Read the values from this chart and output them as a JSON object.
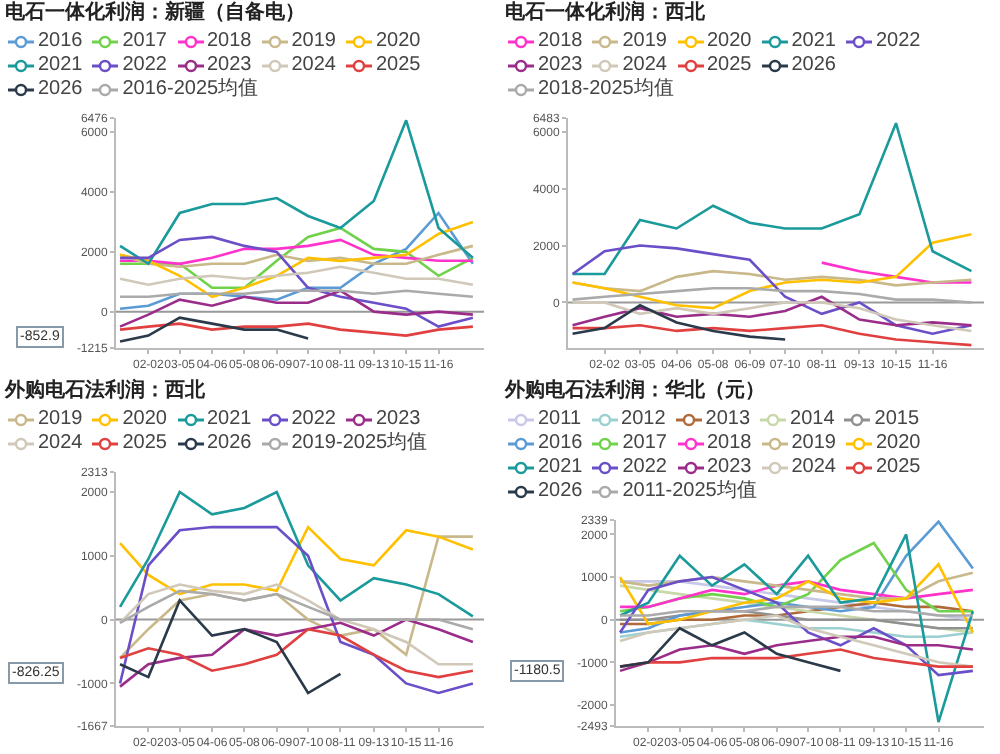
{
  "chart_data": [
    {
      "type": "line",
      "title": "电石一体化利润：新疆（自备电）",
      "legend": "top",
      "marker": "none",
      "grid": false,
      "x": [
        "--01-05",
        "--02-02",
        "--03-05",
        "--04-06",
        "--05-08",
        "--06-09",
        "--07-10",
        "--08-11",
        "--09-13",
        "--10-15",
        "--11-16",
        "--12-20"
      ],
      "xlim": [
        "--01-01",
        "--12-31"
      ],
      "xticks": [
        {
          "value": "--02-02",
          "label": "02-02"
        },
        {
          "value": "--03-05",
          "label": "03-05"
        },
        {
          "value": "--04-06",
          "label": "04-06"
        },
        {
          "value": "--05-08",
          "label": "05-08"
        },
        {
          "value": "--06-09",
          "label": "06-09"
        },
        {
          "value": "--07-10",
          "label": "07-10"
        },
        {
          "value": "--08-11",
          "label": "08-11"
        },
        {
          "value": "--09-13",
          "label": "09-13"
        },
        {
          "value": "--10-15",
          "label": "10-15"
        },
        {
          "value": "--11-16",
          "label": "11-16"
        }
      ],
      "ylim": [
        -1215,
        6476
      ],
      "yticks": [
        -1215,
        0,
        2000,
        4000,
        6000,
        6476
      ],
      "ref_lines": [
        {
          "axis": "y",
          "value": 0,
          "color": "#999999"
        }
      ],
      "annotations": [
        "-852.9"
      ],
      "series": [
        {
          "name": "2016",
          "color": "#5b9bd5",
          "values": [
            100,
            200,
            600,
            600,
            500,
            400,
            800,
            800,
            1600,
            2100,
            3300,
            1600
          ]
        },
        {
          "name": "2017",
          "color": "#70d14a",
          "values": [
            1600,
            1600,
            1600,
            800,
            800,
            1700,
            2500,
            2800,
            2100,
            2000,
            1200,
            1800
          ]
        },
        {
          "name": "2018",
          "color": "#ff33cc",
          "values": [
            1700,
            1700,
            1600,
            1800,
            2100,
            2100,
            2200,
            2400,
            1900,
            1800,
            1700,
            1700
          ]
        },
        {
          "name": "2019",
          "color": "#c8b88a",
          "values": [
            1900,
            1600,
            1500,
            1600,
            1600,
            1900,
            1700,
            1800,
            1600,
            1600,
            1900,
            2200
          ]
        },
        {
          "name": "2020",
          "color": "#ffc000",
          "values": [
            1900,
            1700,
            1200,
            500,
            800,
            1200,
            1800,
            1700,
            1800,
            1900,
            2600,
            3000
          ]
        },
        {
          "name": "2021",
          "color": "#1a9a9a",
          "values": [
            2200,
            1600,
            3300,
            3600,
            3600,
            3800,
            3200,
            2800,
            3700,
            6400,
            2800,
            1800
          ]
        },
        {
          "name": "2022",
          "color": "#6a4fc8",
          "values": [
            1800,
            1800,
            2400,
            2500,
            2200,
            2000,
            800,
            500,
            300,
            100,
            -500,
            -200
          ]
        },
        {
          "name": "2023",
          "color": "#9b2d8a",
          "values": [
            -500,
            -100,
            400,
            200,
            500,
            300,
            300,
            700,
            0,
            -100,
            0,
            -100
          ]
        },
        {
          "name": "2024",
          "color": "#d0c8b8",
          "values": [
            1100,
            900,
            1100,
            1200,
            1100,
            1200,
            1300,
            1500,
            1300,
            1100,
            1100,
            900
          ]
        },
        {
          "name": "2025",
          "color": "#e04040",
          "values": [
            -600,
            -500,
            -400,
            -600,
            -500,
            -500,
            -400,
            -600,
            -700,
            -800,
            -600,
            -500
          ]
        },
        {
          "name": "2026",
          "color": "#2b3a4a",
          "values": [
            -1000,
            -800,
            -200,
            -400,
            -600,
            -600,
            -900,
            null,
            null,
            null,
            null,
            null
          ]
        },
        {
          "name": "2016-2025均值",
          "color": "#aaaaaa",
          "values": [
            500,
            500,
            600,
            600,
            600,
            700,
            700,
            700,
            600,
            700,
            600,
            500
          ]
        }
      ]
    },
    {
      "type": "line",
      "title": "电石一体化利润：西北",
      "legend": "top",
      "marker": "none",
      "grid": false,
      "x": [
        "--01-05",
        "--02-02",
        "--03-05",
        "--04-06",
        "--05-08",
        "--06-09",
        "--07-10",
        "--08-11",
        "--09-13",
        "--10-15",
        "--11-16",
        "--12-20"
      ],
      "xlim": [
        "--01-01",
        "--12-31"
      ],
      "xticks": [
        {
          "value": "--02-02",
          "label": "02-02"
        },
        {
          "value": "--03-05",
          "label": "03-05"
        },
        {
          "value": "--04-06",
          "label": "04-06"
        },
        {
          "value": "--05-08",
          "label": "05-08"
        },
        {
          "value": "--06-09",
          "label": "06-09"
        },
        {
          "value": "--07-10",
          "label": "07-10"
        },
        {
          "value": "--08-11",
          "label": "08-11"
        },
        {
          "value": "--09-13",
          "label": "09-13"
        },
        {
          "value": "--10-15",
          "label": "10-15"
        },
        {
          "value": "--11-16",
          "label": "11-16"
        }
      ],
      "ylim": [
        -1600,
        6483
      ],
      "yticks": [
        0,
        2000,
        4000,
        6000,
        6483
      ],
      "ref_lines": [
        {
          "axis": "y",
          "value": 0,
          "color": "#999999"
        }
      ],
      "series": [
        {
          "name": "2018",
          "color": "#ff33cc",
          "values": [
            null,
            null,
            null,
            null,
            null,
            null,
            null,
            1400,
            1100,
            900,
            700,
            700
          ]
        },
        {
          "name": "2019",
          "color": "#c8b88a",
          "values": [
            700,
            500,
            400,
            900,
            1100,
            1000,
            800,
            900,
            800,
            600,
            700,
            800
          ]
        },
        {
          "name": "2020",
          "color": "#ffc000",
          "values": [
            700,
            500,
            200,
            -100,
            -200,
            400,
            700,
            800,
            700,
            900,
            2100,
            2400
          ]
        },
        {
          "name": "2021",
          "color": "#1a9a9a",
          "values": [
            1000,
            1000,
            2900,
            2600,
            3400,
            2800,
            2600,
            2600,
            3100,
            6300,
            1800,
            1100
          ]
        },
        {
          "name": "2022",
          "color": "#6a4fc8",
          "values": [
            1000,
            1800,
            2000,
            1900,
            1700,
            1500,
            200,
            -400,
            0,
            -800,
            -1100,
            -800
          ]
        },
        {
          "name": "2023",
          "color": "#9b2d8a",
          "values": [
            -800,
            -500,
            -200,
            -500,
            -400,
            -500,
            -300,
            200,
            -600,
            -800,
            -700,
            -800
          ]
        },
        {
          "name": "2024",
          "color": "#d0c8b8",
          "values": [
            0,
            0,
            -400,
            -200,
            -400,
            -200,
            0,
            0,
            -200,
            -600,
            -800,
            -1000
          ]
        },
        {
          "name": "2025",
          "color": "#e04040",
          "values": [
            -900,
            -900,
            -800,
            -1000,
            -900,
            -1000,
            -900,
            -800,
            -1100,
            -1300,
            -1400,
            -1500
          ]
        },
        {
          "name": "2026",
          "color": "#2b3a4a",
          "values": [
            -1100,
            -900,
            -100,
            -700,
            -1000,
            -1200,
            -1300,
            null,
            null,
            null,
            null,
            null
          ]
        },
        {
          "name": "2018-2025均值",
          "color": "#aaaaaa",
          "values": [
            100,
            200,
            300,
            400,
            500,
            500,
            400,
            400,
            300,
            100,
            100,
            0
          ]
        }
      ]
    },
    {
      "type": "line",
      "title": "外购电石法利润：西北",
      "legend": "top",
      "marker": "none",
      "grid": false,
      "x": [
        "--01-05",
        "--02-02",
        "--03-05",
        "--04-06",
        "--05-08",
        "--06-09",
        "--07-10",
        "--08-11",
        "--09-13",
        "--10-15",
        "--11-16",
        "--12-20"
      ],
      "xlim": [
        "--01-01",
        "--12-31"
      ],
      "xticks": [
        {
          "value": "--02-02",
          "label": "02-02"
        },
        {
          "value": "--03-05",
          "label": "03-05"
        },
        {
          "value": "--04-06",
          "label": "04-06"
        },
        {
          "value": "--05-08",
          "label": "05-08"
        },
        {
          "value": "--06-09",
          "label": "06-09"
        },
        {
          "value": "--07-10",
          "label": "07-10"
        },
        {
          "value": "--08-11",
          "label": "08-11"
        },
        {
          "value": "--09-13",
          "label": "09-13"
        },
        {
          "value": "--10-15",
          "label": "10-15"
        },
        {
          "value": "--11-16",
          "label": "11-16"
        }
      ],
      "ylim": [
        -1667,
        2313
      ],
      "yticks": [
        -1667,
        -1000,
        0,
        1000,
        2000,
        2313
      ],
      "ref_lines": [
        {
          "axis": "y",
          "value": 0,
          "color": "#999999"
        }
      ],
      "annotations": [
        "-826.25"
      ],
      "series": [
        {
          "name": "2019",
          "color": "#c8b88a",
          "values": [
            -600,
            -150,
            300,
            400,
            300,
            400,
            0,
            -250,
            -150,
            -550,
            1300,
            1300
          ]
        },
        {
          "name": "2020",
          "color": "#ffc000",
          "values": [
            1200,
            700,
            400,
            550,
            550,
            450,
            1450,
            950,
            850,
            1400,
            1300,
            1100
          ]
        },
        {
          "name": "2021",
          "color": "#1a9a9a",
          "values": [
            200,
            950,
            2000,
            1650,
            1750,
            2000,
            850,
            300,
            650,
            550,
            400,
            50
          ]
        },
        {
          "name": "2022",
          "color": "#6a4fc8",
          "values": [
            -1000,
            850,
            1400,
            1450,
            1450,
            1450,
            1000,
            -350,
            -550,
            -1000,
            -1150,
            -1000
          ]
        },
        {
          "name": "2023",
          "color": "#9b2d8a",
          "values": [
            -1050,
            -700,
            -600,
            -550,
            -150,
            -250,
            -150,
            -50,
            -250,
            0,
            -150,
            -350
          ]
        },
        {
          "name": "2024",
          "color": "#d0c8b8",
          "values": [
            -50,
            400,
            550,
            450,
            400,
            550,
            300,
            0,
            -150,
            -350,
            -700,
            -700
          ]
        },
        {
          "name": "2025",
          "color": "#e04040",
          "values": [
            -600,
            -450,
            -550,
            -800,
            -700,
            -550,
            -150,
            -250,
            -550,
            -800,
            -900,
            -800
          ]
        },
        {
          "name": "2026",
          "color": "#2b3a4a",
          "values": [
            -700,
            -900,
            300,
            -250,
            -150,
            -350,
            -1150,
            -850,
            null,
            null,
            null,
            null
          ]
        },
        {
          "name": "2019-2025均值",
          "color": "#aaaaaa",
          "values": [
            -50,
            200,
            450,
            400,
            300,
            400,
            200,
            0,
            0,
            0,
            0,
            -150
          ]
        }
      ]
    },
    {
      "type": "line",
      "title": "外购电石法利润：华北（元）",
      "legend": "top",
      "marker": "none",
      "grid": false,
      "x": [
        "--01-05",
        "--02-02",
        "--03-05",
        "--04-06",
        "--05-08",
        "--06-09",
        "--07-10",
        "--08-11",
        "--09-13",
        "--10-15",
        "--11-16",
        "--12-20"
      ],
      "xlim": [
        "--01-01",
        "--12-31"
      ],
      "xticks": [
        {
          "value": "--02-02",
          "label": "02-02"
        },
        {
          "value": "--03-05",
          "label": "03-05"
        },
        {
          "value": "--04-06",
          "label": "04-06"
        },
        {
          "value": "--05-08",
          "label": "05-08"
        },
        {
          "value": "--06-09",
          "label": "06-09"
        },
        {
          "value": "--07-10",
          "label": "07-10"
        },
        {
          "value": "--08-11",
          "label": "08-11"
        },
        {
          "value": "--09-13",
          "label": "09-13"
        },
        {
          "value": "--10-15",
          "label": "10-15"
        },
        {
          "value": "--11-16",
          "label": "11-16"
        }
      ],
      "ylim": [
        -2493,
        2339
      ],
      "yticks": [
        -2493,
        -2000,
        -1000,
        0,
        1000,
        2000,
        2339
      ],
      "ref_lines": [
        {
          "axis": "y",
          "value": 0,
          "color": "#999999"
        }
      ],
      "annotations": [
        "-1180.5"
      ],
      "series": [
        {
          "name": "2011",
          "color": "#c8c8e8",
          "values": [
            900,
            900,
            900,
            800,
            700,
            600,
            500,
            400,
            300,
            200,
            100,
            0
          ]
        },
        {
          "name": "2012",
          "color": "#9ccfcf",
          "values": [
            -400,
            -300,
            -200,
            -100,
            0,
            -100,
            -200,
            -200,
            -300,
            -400,
            -400,
            -300
          ]
        },
        {
          "name": "2013",
          "color": "#b06a3a",
          "values": [
            -100,
            -100,
            0,
            0,
            100,
            100,
            200,
            300,
            400,
            300,
            300,
            200
          ]
        },
        {
          "name": "2014",
          "color": "#c8d8a8",
          "values": [
            800,
            700,
            600,
            500,
            400,
            300,
            200,
            100,
            0,
            -100,
            -200,
            -300
          ]
        },
        {
          "name": "2015",
          "color": "#909090",
          "values": [
            0,
            0,
            100,
            200,
            200,
            100,
            0,
            0,
            0,
            -100,
            -200,
            -200
          ]
        },
        {
          "name": "2016",
          "color": "#5b9bd5",
          "values": [
            -300,
            -200,
            100,
            200,
            300,
            400,
            300,
            200,
            300,
            1500,
            2300,
            1200
          ]
        },
        {
          "name": "2017",
          "color": "#70d14a",
          "values": [
            200,
            300,
            500,
            600,
            500,
            300,
            600,
            1400,
            1800,
            700,
            200,
            200
          ]
        },
        {
          "name": "2018",
          "color": "#ff33cc",
          "values": [
            300,
            300,
            500,
            700,
            600,
            800,
            900,
            700,
            600,
            500,
            600,
            700
          ]
        },
        {
          "name": "2019",
          "color": "#c8b88a",
          "values": [
            900,
            800,
            900,
            1000,
            900,
            800,
            700,
            600,
            500,
            500,
            900,
            1100
          ]
        },
        {
          "name": "2020",
          "color": "#ffc000",
          "values": [
            1000,
            -100,
            0,
            200,
            400,
            500,
            900,
            500,
            400,
            500,
            1300,
            -300
          ]
        },
        {
          "name": "2021",
          "color": "#1a9a9a",
          "values": [
            100,
            400,
            1500,
            800,
            1300,
            600,
            1500,
            400,
            500,
            2000,
            -2400,
            200
          ]
        },
        {
          "name": "2022",
          "color": "#6a4fc8",
          "values": [
            -300,
            700,
            900,
            1000,
            700,
            400,
            -300,
            -600,
            -200,
            -600,
            -1300,
            -1200
          ]
        },
        {
          "name": "2023",
          "color": "#9b2d8a",
          "values": [
            -1200,
            -1000,
            -700,
            -600,
            -800,
            -600,
            -500,
            -400,
            -400,
            -600,
            -600,
            -700
          ]
        },
        {
          "name": "2024",
          "color": "#d0c8b8",
          "values": [
            -500,
            -300,
            -200,
            -100,
            0,
            100,
            -200,
            -400,
            -600,
            -800,
            -1000,
            -1100
          ]
        },
        {
          "name": "2025",
          "color": "#e04040",
          "values": [
            -1100,
            -1000,
            -1000,
            -900,
            -900,
            -900,
            -800,
            -700,
            -900,
            -1000,
            -1100,
            -1100
          ]
        },
        {
          "name": "2026",
          "color": "#2b3a4a",
          "values": [
            -1100,
            -1000,
            -200,
            -600,
            -300,
            -800,
            -1000,
            -1200,
            null,
            null,
            null,
            null
          ]
        },
        {
          "name": "2011-2025均值",
          "color": "#aaaaaa",
          "values": [
            100,
            100,
            200,
            200,
            200,
            300,
            300,
            300,
            200,
            200,
            100,
            100
          ]
        }
      ]
    }
  ]
}
